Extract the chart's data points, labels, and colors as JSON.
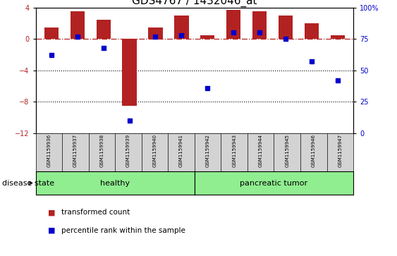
{
  "title": "GDS4767 / 1432046_at",
  "samples": [
    "GSM1159936",
    "GSM1159937",
    "GSM1159938",
    "GSM1159939",
    "GSM1159940",
    "GSM1159941",
    "GSM1159942",
    "GSM1159943",
    "GSM1159944",
    "GSM1159945",
    "GSM1159946",
    "GSM1159947"
  ],
  "red_bars": [
    1.5,
    3.5,
    2.5,
    -8.5,
    1.5,
    3.0,
    0.5,
    3.7,
    3.5,
    3.0,
    2.0,
    0.5
  ],
  "blue_dots": [
    62,
    77,
    68,
    10,
    77,
    78,
    36,
    80,
    80,
    75,
    57,
    42
  ],
  "left_ylim": [
    -12,
    4
  ],
  "left_yticks": [
    4,
    0,
    -4,
    -8,
    -12
  ],
  "right_ylim": [
    0,
    100
  ],
  "right_yticks": [
    0,
    25,
    50,
    75,
    100
  ],
  "right_yticklabels": [
    "0",
    "25",
    "50",
    "75",
    "100%"
  ],
  "bar_color": "#b22222",
  "dot_color": "#0000cd",
  "hline_color": "#b22222",
  "dotted_line_color": "#000000",
  "healthy_label": "healthy",
  "tumor_label": "pancreatic tumor",
  "group_color": "#90ee90",
  "sample_cell_color": "#d3d3d3",
  "disease_state_label": "disease state",
  "legend_red": "transformed count",
  "legend_blue": "percentile rank within the sample",
  "bg_color": "#ffffff",
  "title_fontsize": 11,
  "tick_fontsize": 7,
  "label_fontsize": 8,
  "sample_fontsize": 5
}
